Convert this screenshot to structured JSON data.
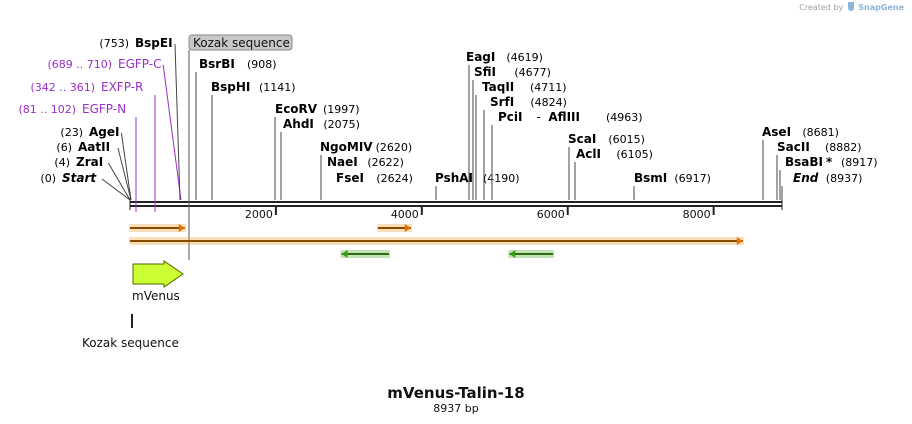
{
  "credit": {
    "text": "Created by",
    "brand": "SnapGene"
  },
  "title": "mVenus-Talin-18",
  "length_label": "8937 bp",
  "map": {
    "length": 8937,
    "ticks": [
      2000,
      4000,
      6000,
      8000
    ],
    "features_boxed": [
      {
        "name": "Kozak sequence"
      }
    ],
    "sites": [
      {
        "name": "Start",
        "pos": "(0)",
        "bp": 0,
        "italic": true,
        "color": "#000000"
      },
      {
        "name": "ZraI",
        "pos": "(4)",
        "bp": 4,
        "color": "#000000"
      },
      {
        "name": "AatII",
        "pos": "(6)",
        "bp": 6,
        "color": "#000000"
      },
      {
        "name": "AgeI",
        "pos": "(23)",
        "bp": 23,
        "color": "#000000"
      },
      {
        "name": "EGFP-N",
        "pos": "(81 .. 102)",
        "bp": 91,
        "color": "#9a2fc8"
      },
      {
        "name": "EXFP-R",
        "pos": "(342 .. 361)",
        "bp": 351,
        "color": "#9a2fc8"
      },
      {
        "name": "EGFP-C",
        "pos": "(689 .. 710)",
        "bp": 700,
        "color": "#9a2fc8"
      },
      {
        "name": "BspEI",
        "pos": "(753)",
        "bp": 753,
        "color": "#000000"
      },
      {
        "name": "BsrBI",
        "pos": "(908)",
        "bp": 908,
        "color": "#000000"
      },
      {
        "name": "BspHI",
        "pos": "(1141)",
        "bp": 1141,
        "color": "#000000"
      },
      {
        "name": "EcoRV",
        "pos": "(1997)",
        "bp": 1997,
        "color": "#000000"
      },
      {
        "name": "AhdI",
        "pos": "(2075)",
        "bp": 2075,
        "color": "#000000"
      },
      {
        "name": "NgoMIV",
        "pos": "(2620)",
        "bp": 2620,
        "color": "#000000"
      },
      {
        "name": "NaeI",
        "pos": "(2622)",
        "bp": 2622,
        "color": "#000000"
      },
      {
        "name": "FseI",
        "pos": "(2624)",
        "bp": 2624,
        "color": "#000000"
      },
      {
        "name": "PshAI",
        "pos": "(4190)",
        "bp": 4190,
        "color": "#000000"
      },
      {
        "name": "EagI",
        "pos": "(4619)",
        "bp": 4619,
        "color": "#000000"
      },
      {
        "name": "SfiI",
        "pos": "(4677)",
        "bp": 4677,
        "color": "#000000"
      },
      {
        "name": "TaqII",
        "pos": "(4711)",
        "bp": 4711,
        "color": "#000000"
      },
      {
        "name": "SrfI",
        "pos": "(4824)",
        "bp": 4824,
        "color": "#000000"
      },
      {
        "name": "PciI",
        "pos": "(4963)",
        "bp": 4963,
        "color": "#000000",
        "paired_with": "AflIII",
        "joiner": "-"
      },
      {
        "name": "ScaI",
        "pos": "(6015)",
        "bp": 6015,
        "color": "#000000"
      },
      {
        "name": "AclI",
        "pos": "(6105)",
        "bp": 6105,
        "color": "#000000"
      },
      {
        "name": "BsmI",
        "pos": "(6917)",
        "bp": 6917,
        "color": "#000000"
      },
      {
        "name": "AseI",
        "pos": "(8681)",
        "bp": 8681,
        "color": "#000000"
      },
      {
        "name": "SacII",
        "pos": "(8882)",
        "bp": 8882,
        "color": "#000000"
      },
      {
        "name": "BsaBI",
        "pos": "(8917)",
        "bp": 8917,
        "color": "#000000",
        "suffix": "*"
      },
      {
        "name": "End",
        "pos": "(8937)",
        "bp": 8937,
        "italic": true,
        "color": "#000000"
      }
    ],
    "feature_mvenus": {
      "name": "mVenus",
      "color": "#ccff33"
    },
    "feature_kozak": {
      "name": "Kozak sequence"
    },
    "arrows": [
      {
        "start": 0,
        "end": 750,
        "dir": "fwd",
        "color": "#f0a030"
      },
      {
        "start": 3400,
        "end": 3850,
        "dir": "fwd",
        "color": "#f0a030"
      },
      {
        "start": 0,
        "end": 8400,
        "dir": "fwd",
        "color": "#f0a030"
      },
      {
        "start": 2900,
        "end": 3550,
        "dir": "rev",
        "color": "#55b030"
      },
      {
        "start": 5200,
        "end": 5800,
        "dir": "rev",
        "color": "#55b030"
      }
    ]
  }
}
